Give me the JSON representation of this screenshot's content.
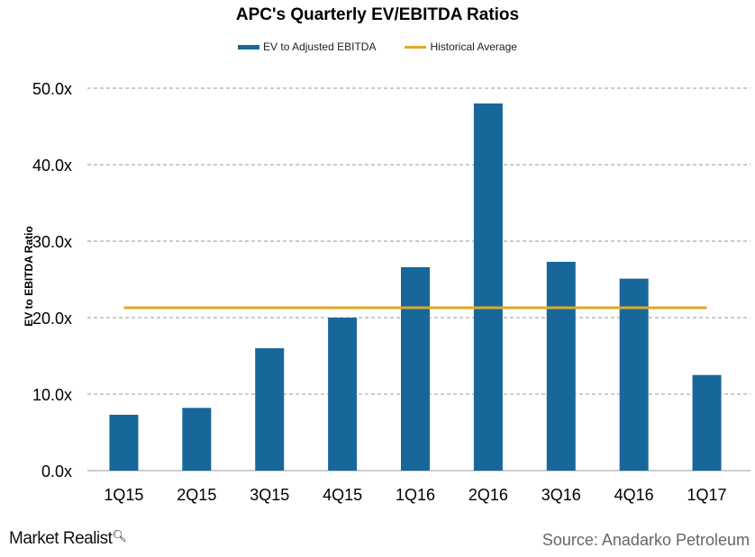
{
  "chart_data": {
    "type": "bar",
    "title": "APC's Quarterly  EV/EBITDA Ratios",
    "xlabel": "",
    "ylabel": "EV to EBITDA Ratio",
    "ylim": [
      0,
      50
    ],
    "yticks": [
      "0.0x",
      "10.0x",
      "20.0x",
      "30.0x",
      "40.0x",
      "50.0x"
    ],
    "grid": true,
    "legend_position": "top",
    "categories": [
      "1Q15",
      "2Q15",
      "3Q15",
      "4Q15",
      "1Q16",
      "2Q16",
      "3Q16",
      "4Q16",
      "1Q17"
    ],
    "series": [
      {
        "name": "EV to Adjusted EBITDA",
        "kind": "bar",
        "color": "#17679a",
        "values": [
          7.3,
          8.2,
          16.0,
          20.0,
          26.6,
          48.0,
          27.3,
          25.1,
          12.5
        ]
      },
      {
        "name": "Historical Average",
        "kind": "line",
        "color": "#e1a924",
        "values": [
          21.3,
          21.3,
          21.3,
          21.3,
          21.3,
          21.3,
          21.3,
          21.3,
          21.3
        ]
      }
    ]
  },
  "footer": {
    "brand": "Market Realist",
    "source": "Source: Anadarko Petroleum"
  }
}
